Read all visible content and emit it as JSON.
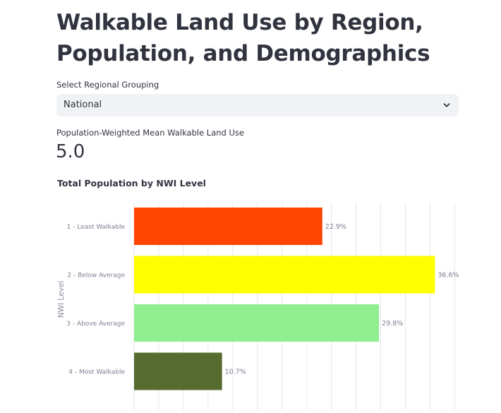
{
  "page": {
    "title": "Walkable Land Use by Region, Population, and Demographics"
  },
  "select": {
    "label": "Select Regional Grouping",
    "value": "National"
  },
  "metric": {
    "label": "Population-Weighted Mean Walkable Land Use",
    "value": "5.0"
  },
  "icons": {
    "select_chevron": "chevron-down-icon"
  },
  "chart_data": {
    "type": "bar",
    "orientation": "horizontal",
    "title": "Total Population by NWI Level",
    "ylabel": "NWI Level",
    "xlabel": "",
    "categories": [
      "1 - Least Walkable",
      "2 - Below Average",
      "3 - Above Average",
      "4 - Most Walkable"
    ],
    "values": [
      22.9,
      36.6,
      29.8,
      10.7
    ],
    "data_labels": [
      "22.9%",
      "36.6%",
      "29.8%",
      "10.7%"
    ],
    "colors": [
      "#ff4500",
      "#ffff00",
      "#90ee90",
      "#556b2f"
    ],
    "xlim": [
      0,
      40
    ],
    "grid": true,
    "value_unit": "%"
  }
}
